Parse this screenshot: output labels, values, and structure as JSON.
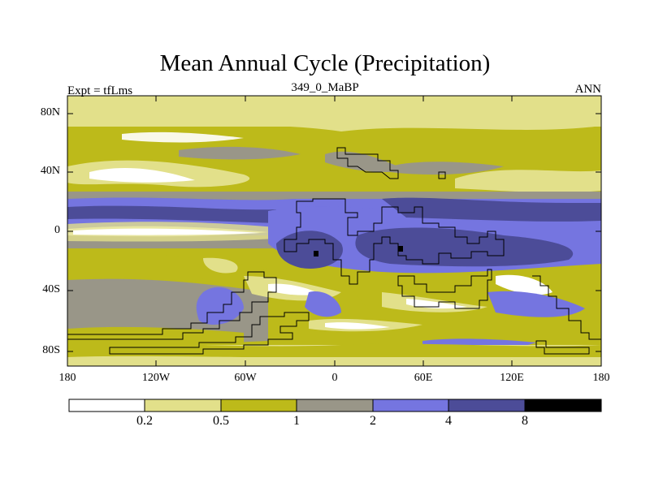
{
  "title": "Mean Annual Cycle (Precipitation)",
  "subtitle_left": "Expt = tfLms",
  "subtitle_center": "349_0_MaBP",
  "subtitle_right": "ANN",
  "y_axis_ticks": [
    "80N",
    "40N",
    "0",
    "40S",
    "80S"
  ],
  "x_axis_ticks": [
    "180",
    "120W",
    "60W",
    "0",
    "60E",
    "120E",
    "180"
  ],
  "colorbar": {
    "labels": [
      "0.2",
      "0.5",
      "1",
      "2",
      "4",
      "8"
    ],
    "colors": [
      "#ffffff",
      "#e2e08a",
      "#bdba1a",
      "#999688",
      "#7575e0",
      "#4c4c98",
      "#000000"
    ]
  },
  "chart_data": {
    "type": "heatmap",
    "title": "Mean Annual Cycle (Precipitation)",
    "variable": "Precipitation",
    "experiment": "tfLms",
    "period": "349_0_MaBP",
    "season": "ANN",
    "x_range": [
      -180,
      180
    ],
    "y_range": [
      -90,
      90
    ],
    "contour_levels": [
      0.2,
      0.5,
      1,
      2,
      4,
      8
    ]
  }
}
